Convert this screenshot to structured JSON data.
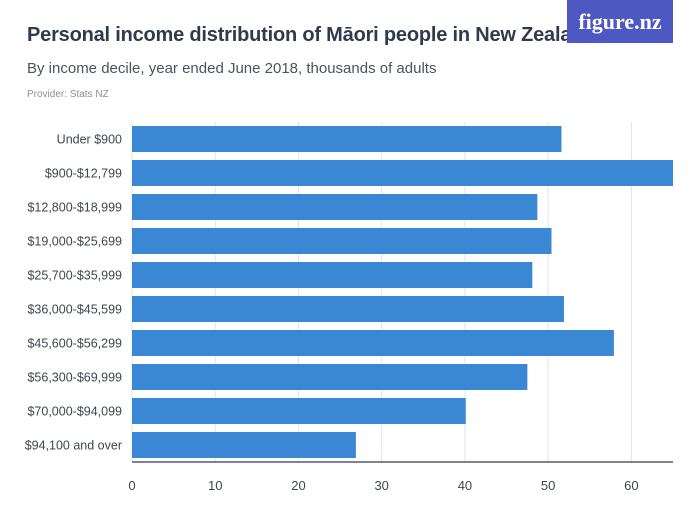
{
  "header": {
    "title": "Personal income distribution of Māori people in New Zealand",
    "subtitle": "By income decile, year ended June 2018, thousands of adults",
    "provider": "Provider: Stats NZ",
    "logo_text": "figure.nz"
  },
  "colors": {
    "bar": "#3a87d3",
    "grid": "#e3e5e8",
    "axis": "#2f3b4d"
  },
  "chart_data": {
    "type": "bar",
    "orientation": "horizontal",
    "categories": [
      "Under $900",
      "$900-$12,799",
      "$12,800-$18,999",
      "$19,000-$25,699",
      "$25,700-$35,999",
      "$36,000-$45,599",
      "$45,600-$56,299",
      "$56,300-$69,999",
      "$70,000-$94,099",
      "$94,100 and over"
    ],
    "values": [
      51.6,
      65.5,
      48.7,
      50.4,
      48.1,
      51.9,
      57.9,
      47.5,
      40.1,
      26.9
    ],
    "xlim": [
      0,
      65
    ],
    "xticks": [
      0,
      10,
      20,
      30,
      40,
      50,
      60
    ],
    "grid": true,
    "title": "Personal income distribution of Māori people in New Zealand",
    "xlabel": "",
    "ylabel": ""
  }
}
